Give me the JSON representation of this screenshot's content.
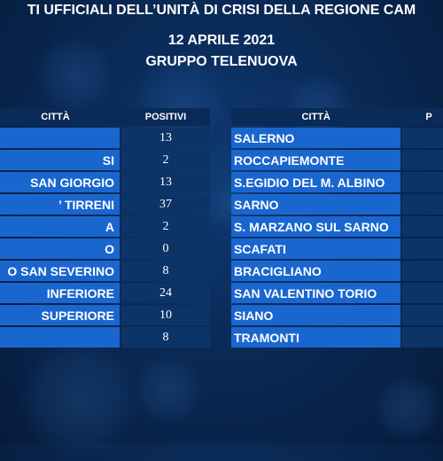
{
  "header": {
    "title_line1": "TI UFFICIALI DELL’UNITÀ DI CRISI DELLA REGIONE CAM",
    "date": "12 APRILE 2021",
    "group": "GRUPPO TELENUOVA"
  },
  "left_table": {
    "col_city": "CITTÀ",
    "col_positive": "POSITIVI",
    "rows": [
      {
        "city": "",
        "positive": "13"
      },
      {
        "city": "SI",
        "positive": "2"
      },
      {
        "city": "SAN GIORGIO",
        "positive": "13"
      },
      {
        "city": "’ TIRRENI",
        "positive": "37"
      },
      {
        "city": "A",
        "positive": "2"
      },
      {
        "city": "O",
        "positive": "0"
      },
      {
        "city": "O SAN SEVERINO",
        "positive": "8"
      },
      {
        "city": "INFERIORE",
        "positive": "24"
      },
      {
        "city": "SUPERIORE",
        "positive": "10"
      },
      {
        "city": "",
        "positive": "8"
      }
    ]
  },
  "right_table": {
    "col_city": "CITTÀ",
    "col_positive": "P",
    "rows": [
      {
        "city": "SALERNO",
        "positive": ""
      },
      {
        "city": "ROCCAPIEMONTE",
        "positive": ""
      },
      {
        "city": "S.EGIDIO DEL M. ALBINO",
        "positive": ""
      },
      {
        "city": "SARNO",
        "positive": ""
      },
      {
        "city": "S. MARZANO SUL SARNO",
        "positive": ""
      },
      {
        "city": "SCAFATI",
        "positive": ""
      },
      {
        "city": "BRACIGLIANO",
        "positive": ""
      },
      {
        "city": "SAN VALENTINO TORIO",
        "positive": ""
      },
      {
        "city": "SIANO",
        "positive": ""
      },
      {
        "city": "TRAMONTI",
        "positive": ""
      }
    ]
  }
}
